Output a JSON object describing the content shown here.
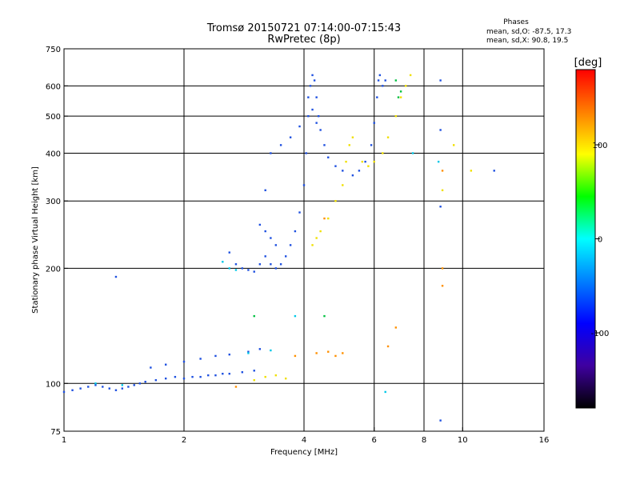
{
  "chart_data": {
    "type": "scatter",
    "title": "Tromsø 20150721 07:14:00-07:15:43",
    "subtitle": "RwPretec (8p)",
    "stats": {
      "heading": "Phases",
      "line1": "mean, sd,O: -87.5, 17.3",
      "line2": "mean, sd,X:  90.8, 19.5"
    },
    "xlabel": "Frequency [MHz]",
    "ylabel": "Stationary phase Virtual Height [km]",
    "x_scale": "log2",
    "y_scale": "log",
    "xlim": [
      1,
      16
    ],
    "ylim": [
      75,
      750
    ],
    "x_ticks": [
      "1",
      "2",
      "4",
      "6",
      "8",
      "10",
      "16"
    ],
    "x_tick_values": [
      1,
      2,
      4,
      6,
      8,
      10,
      16
    ],
    "y_ticks": [
      "75",
      "100",
      "200",
      "300",
      "400",
      "500",
      "600",
      "750"
    ],
    "y_tick_values": [
      75,
      100,
      200,
      300,
      400,
      500,
      600,
      750
    ],
    "x_gridlines": [
      2,
      4,
      6,
      8,
      10
    ],
    "y_gridlines": [
      100,
      200,
      300,
      400,
      500,
      600
    ],
    "colorbar": {
      "label": "[deg]",
      "range": [
        -180,
        180
      ],
      "ticks": [
        "100",
        "0",
        "-100"
      ],
      "tick_values": [
        100,
        0,
        -100
      ],
      "colors": [
        "#ff0000",
        "#ff7f00",
        "#ffff00",
        "#00ff00",
        "#00ffff",
        "#007fff",
        "#0000ff",
        "#3f00a0",
        "#000000"
      ]
    },
    "series": [
      {
        "color": "#1e50e0",
        "points": [
          [
            1.0,
            95
          ],
          [
            1.05,
            96
          ],
          [
            1.1,
            97
          ],
          [
            1.15,
            98
          ],
          [
            1.2,
            99
          ],
          [
            1.25,
            98
          ],
          [
            1.3,
            97
          ],
          [
            1.35,
            96
          ],
          [
            1.4,
            97
          ],
          [
            1.45,
            98
          ],
          [
            1.5,
            99
          ],
          [
            1.55,
            100
          ],
          [
            1.6,
            101
          ],
          [
            1.7,
            102
          ],
          [
            1.8,
            103
          ],
          [
            1.9,
            104
          ],
          [
            2.0,
            103
          ],
          [
            2.1,
            104
          ],
          [
            2.2,
            104
          ],
          [
            2.3,
            105
          ],
          [
            2.4,
            105
          ],
          [
            2.5,
            106
          ],
          [
            2.6,
            106
          ],
          [
            2.8,
            107
          ],
          [
            3.0,
            108
          ],
          [
            1.65,
            110
          ],
          [
            1.8,
            112
          ],
          [
            2.0,
            114
          ],
          [
            2.2,
            116
          ],
          [
            2.4,
            118
          ],
          [
            2.6,
            119
          ],
          [
            2.9,
            121
          ],
          [
            3.1,
            123
          ],
          [
            1.35,
            190
          ],
          [
            2.6,
            220
          ],
          [
            2.7,
            205
          ],
          [
            2.8,
            200
          ],
          [
            2.9,
            198
          ],
          [
            3.0,
            196
          ],
          [
            3.1,
            205
          ],
          [
            3.2,
            215
          ],
          [
            3.3,
            205
          ],
          [
            3.4,
            200
          ],
          [
            3.5,
            205
          ],
          [
            3.6,
            215
          ],
          [
            3.7,
            230
          ],
          [
            3.8,
            250
          ],
          [
            3.9,
            280
          ],
          [
            4.0,
            330
          ],
          [
            4.05,
            400
          ],
          [
            4.1,
            500
          ],
          [
            4.15,
            600
          ],
          [
            4.2,
            640
          ],
          [
            4.25,
            620
          ],
          [
            4.3,
            560
          ],
          [
            4.35,
            500
          ],
          [
            4.4,
            460
          ],
          [
            4.5,
            420
          ],
          [
            4.6,
            390
          ],
          [
            4.8,
            370
          ],
          [
            5.0,
            360
          ],
          [
            5.3,
            350
          ],
          [
            5.5,
            360
          ],
          [
            5.7,
            380
          ],
          [
            5.9,
            420
          ],
          [
            6.0,
            480
          ],
          [
            6.1,
            560
          ],
          [
            6.15,
            620
          ],
          [
            6.2,
            640
          ],
          [
            6.3,
            600
          ],
          [
            3.3,
            400
          ],
          [
            3.5,
            420
          ],
          [
            3.7,
            440
          ],
          [
            3.9,
            470
          ],
          [
            3.2,
            320
          ],
          [
            3.1,
            260
          ],
          [
            3.2,
            250
          ],
          [
            3.3,
            240
          ],
          [
            3.4,
            230
          ],
          [
            4.1,
            560
          ],
          [
            4.2,
            520
          ],
          [
            4.3,
            480
          ],
          [
            6.4,
            620
          ],
          [
            8.8,
            620
          ],
          [
            8.8,
            460
          ],
          [
            8.8,
            290
          ],
          [
            8.8,
            80
          ],
          [
            12,
            360
          ]
        ]
      },
      {
        "color": "#00c8e8",
        "points": [
          [
            1.2,
            100
          ],
          [
            1.4,
            99
          ],
          [
            2.5,
            208
          ],
          [
            2.6,
            200
          ],
          [
            2.7,
            198
          ],
          [
            2.9,
            120
          ],
          [
            3.3,
            122
          ],
          [
            3.8,
            150
          ],
          [
            6.4,
            95
          ],
          [
            7.5,
            400
          ],
          [
            8.7,
            380
          ]
        ]
      },
      {
        "color": "#00c040",
        "points": [
          [
            3.0,
            150
          ],
          [
            4.5,
            150
          ],
          [
            6.8,
            620
          ],
          [
            7.0,
            580
          ],
          [
            6.9,
            560
          ]
        ]
      },
      {
        "color": "#f0e000",
        "points": [
          [
            3.0,
            102
          ],
          [
            3.2,
            104
          ],
          [
            3.4,
            105
          ],
          [
            3.6,
            103
          ],
          [
            4.2,
            230
          ],
          [
            4.3,
            240
          ],
          [
            4.4,
            250
          ],
          [
            4.6,
            270
          ],
          [
            4.8,
            300
          ],
          [
            5.0,
            330
          ],
          [
            5.1,
            380
          ],
          [
            5.2,
            420
          ],
          [
            5.3,
            440
          ],
          [
            5.6,
            380
          ],
          [
            5.8,
            370
          ],
          [
            6.0,
            380
          ],
          [
            6.3,
            400
          ],
          [
            6.5,
            440
          ],
          [
            6.8,
            500
          ],
          [
            7.0,
            560
          ],
          [
            7.2,
            600
          ],
          [
            7.4,
            640
          ],
          [
            8.9,
            320
          ],
          [
            9.5,
            420
          ],
          [
            10.5,
            360
          ]
        ]
      },
      {
        "color": "#ff9000",
        "points": [
          [
            2.7,
            98
          ],
          [
            3.8,
            118
          ],
          [
            4.3,
            120
          ],
          [
            4.6,
            121
          ],
          [
            4.8,
            118
          ],
          [
            5.0,
            120
          ],
          [
            4.5,
            270
          ],
          [
            6.5,
            125
          ],
          [
            6.8,
            140
          ],
          [
            8.9,
            200
          ],
          [
            8.9,
            180
          ],
          [
            8.9,
            360
          ]
        ]
      }
    ]
  }
}
